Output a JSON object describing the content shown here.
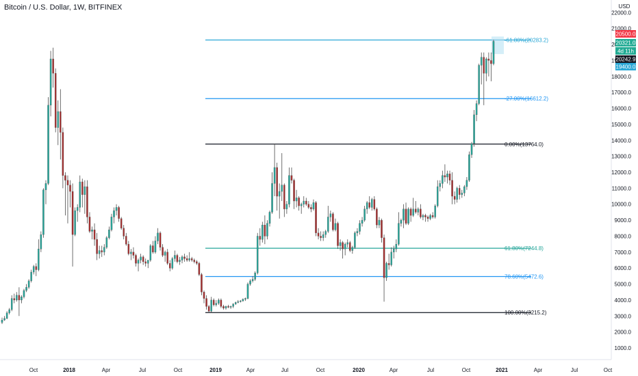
{
  "header": {
    "symbol_line": "Bitcoin / U.S. Dollar, 1W, BITFINEX"
  },
  "axis": {
    "currency_label": "USD",
    "price_ticks": [
      1000,
      2000,
      3000,
      4000,
      5000,
      6000,
      7000,
      8000,
      9000,
      10000,
      11000,
      12000,
      13000,
      14000,
      15000,
      16000,
      17000,
      18000,
      19000,
      20000,
      21000,
      22000
    ],
    "time_labels": [
      "Oct",
      "2018",
      "Apr",
      "Jul",
      "Oct",
      "2019",
      "Apr",
      "Jul",
      "Oct",
      "2020",
      "Apr",
      "Jul",
      "Oct",
      "2021",
      "Apr",
      "Jul",
      "Oct"
    ]
  },
  "price_badges": [
    {
      "text": "20500.0",
      "color": "#f23645"
    },
    {
      "text": "20321.0",
      "color": "#22ab94"
    },
    {
      "text": "4d 11h",
      "color": "#22ab94"
    },
    {
      "text": "20242.9",
      "color": "#131722"
    },
    {
      "text": "19400.0",
      "color": "#2aa7d6"
    }
  ],
  "chart_data": {
    "type": "candlestick",
    "title": "Bitcoin / U.S. Dollar, 1W, BITFINEX",
    "ylim": [
      0,
      22500
    ],
    "y_scale": "linear",
    "grid": false,
    "colors": {
      "up": "#26a69a",
      "down": "#a62f2f",
      "wick": "#4a4a4a"
    },
    "fib_levels": [
      {
        "label": "-61.80%(20283.2)",
        "value": 20283.2,
        "color": "#2aa7d6"
      },
      {
        "label": "-27.00%(16612.2)",
        "value": 16612.2,
        "color": "#2196f3"
      },
      {
        "label": "0.00%(13764.0)",
        "value": 13764.0,
        "color": "#131722"
      },
      {
        "label": "61.80%(7244.8)",
        "value": 7244.8,
        "color": "#26a69a"
      },
      {
        "label": "78.60%(5472.6)",
        "value": 5472.6,
        "color": "#2196f3"
      },
      {
        "label": "100.00%(3215.2)",
        "value": 3215.2,
        "color": "#131722"
      }
    ],
    "target_zone": {
      "low": 19400,
      "high": 20500,
      "color": "#b3e0f2"
    },
    "candles": [
      [
        2600,
        2900,
        2500,
        2750
      ],
      [
        2750,
        3000,
        2700,
        2850
      ],
      [
        2850,
        3300,
        2800,
        3200
      ],
      [
        3200,
        3500,
        3100,
        3400
      ],
      [
        3400,
        4300,
        3300,
        4100
      ],
      [
        4100,
        4400,
        3800,
        4000
      ],
      [
        4000,
        4500,
        3900,
        4300
      ],
      [
        4300,
        4800,
        3000,
        4000
      ],
      [
        4000,
        4300,
        3800,
        4200
      ],
      [
        4200,
        4700,
        4100,
        4600
      ],
      [
        4600,
        5000,
        4500,
        4800
      ],
      [
        4800,
        5300,
        4700,
        5200
      ],
      [
        5200,
        5900,
        5100,
        5750
      ],
      [
        5750,
        6200,
        5600,
        6100
      ],
      [
        6100,
        6300,
        5500,
        5900
      ],
      [
        5900,
        7800,
        5800,
        7200
      ],
      [
        7200,
        8300,
        7000,
        8100
      ],
      [
        8100,
        11000,
        7900,
        10900
      ],
      [
        10900,
        11500,
        10000,
        11300
      ],
      [
        11300,
        16700,
        11200,
        16200
      ],
      [
        16200,
        19600,
        15500,
        19100
      ],
      [
        19100,
        19800,
        17300,
        18200
      ],
      [
        18200,
        18500,
        14500,
        14800
      ],
      [
        14800,
        16500,
        13700,
        15800
      ],
      [
        15800,
        17200,
        12800,
        14500
      ],
      [
        14500,
        14800,
        11000,
        11800
      ],
      [
        11800,
        12000,
        9300,
        11500
      ],
      [
        11500,
        11800,
        8800,
        11200
      ],
      [
        11200,
        11500,
        9800,
        10800
      ],
      [
        10800,
        11300,
        6100,
        8100
      ],
      [
        8100,
        9800,
        8000,
        9600
      ],
      [
        9600,
        10000,
        8900,
        9800
      ],
      [
        9800,
        11800,
        9500,
        11400
      ],
      [
        11400,
        11600,
        9800,
        10600
      ],
      [
        10600,
        11500,
        9400,
        11100
      ],
      [
        11100,
        11500,
        8800,
        9200
      ],
      [
        9200,
        9500,
        8200,
        8300
      ],
      [
        8300,
        8600,
        7800,
        8400
      ],
      [
        8400,
        8800,
        7400,
        7800
      ],
      [
        7800,
        8200,
        6500,
        6900
      ],
      [
        6900,
        7400,
        6600,
        7100
      ],
      [
        7100,
        7400,
        6700,
        7000
      ],
      [
        7000,
        7500,
        6800,
        7300
      ],
      [
        7300,
        8000,
        7200,
        7900
      ],
      [
        7900,
        8600,
        7800,
        8400
      ],
      [
        8400,
        9400,
        8300,
        9200
      ],
      [
        9200,
        9800,
        8800,
        9600
      ],
      [
        9600,
        10000,
        9300,
        9800
      ],
      [
        9800,
        9900,
        8900,
        9100
      ],
      [
        9100,
        9200,
        8400,
        8500
      ],
      [
        8500,
        8700,
        7800,
        8000
      ],
      [
        8000,
        8200,
        7400,
        7500
      ],
      [
        7500,
        7700,
        6800,
        6900
      ],
      [
        6900,
        7200,
        6500,
        7000
      ],
      [
        7000,
        7300,
        6600,
        6800
      ],
      [
        6800,
        6900,
        6100,
        6300
      ],
      [
        6300,
        6600,
        5800,
        6500
      ],
      [
        6500,
        6900,
        6300,
        6700
      ],
      [
        6700,
        6800,
        6200,
        6400
      ],
      [
        6400,
        6600,
        6100,
        6300
      ],
      [
        6300,
        6500,
        6000,
        6500
      ],
      [
        6500,
        7500,
        6400,
        7400
      ],
      [
        7400,
        7700,
        6900,
        7000
      ],
      [
        7000,
        8000,
        6900,
        7700
      ],
      [
        7700,
        8500,
        7500,
        8200
      ],
      [
        8200,
        8300,
        7100,
        7300
      ],
      [
        7300,
        7500,
        6700,
        6800
      ],
      [
        6800,
        7100,
        6400,
        7000
      ],
      [
        7000,
        7200,
        6200,
        6300
      ],
      [
        6300,
        6500,
        5800,
        6000
      ],
      [
        6000,
        6700,
        5900,
        6600
      ],
      [
        6600,
        7100,
        6400,
        6800
      ],
      [
        6800,
        6900,
        6300,
        6400
      ],
      [
        6400,
        6700,
        6200,
        6500
      ],
      [
        6500,
        6800,
        6300,
        6700
      ],
      [
        6700,
        6900,
        6400,
        6600
      ],
      [
        6600,
        6800,
        6400,
        6500
      ],
      [
        6500,
        7000,
        6400,
        6600
      ],
      [
        6600,
        6700,
        6400,
        6500
      ],
      [
        6500,
        6600,
        6300,
        6400
      ],
      [
        6400,
        6500,
        6200,
        6300
      ],
      [
        6300,
        6400,
        5500,
        5600
      ],
      [
        5600,
        5700,
        4300,
        4500
      ],
      [
        4500,
        4600,
        3800,
        4100
      ],
      [
        4100,
        4300,
        3400,
        3600
      ],
      [
        3600,
        3700,
        3200,
        3300
      ],
      [
        3300,
        4200,
        3200,
        4000
      ],
      [
        4000,
        4100,
        3600,
        3700
      ],
      [
        3700,
        4000,
        3600,
        3800
      ],
      [
        3800,
        4100,
        3700,
        4000
      ],
      [
        4000,
        4100,
        3500,
        3600
      ],
      [
        3600,
        3700,
        3400,
        3500
      ],
      [
        3500,
        3650,
        3400,
        3600
      ],
      [
        3600,
        3700,
        3500,
        3550
      ],
      [
        3550,
        3650,
        3450,
        3600
      ],
      [
        3600,
        3800,
        3500,
        3750
      ],
      [
        3750,
        3900,
        3700,
        3850
      ],
      [
        3850,
        4000,
        3800,
        3900
      ],
      [
        3900,
        4000,
        3850,
        3950
      ],
      [
        3950,
        4100,
        3900,
        4050
      ],
      [
        4050,
        4150,
        3950,
        4100
      ],
      [
        4100,
        5100,
        4050,
        5000
      ],
      [
        5000,
        5300,
        4900,
        5200
      ],
      [
        5200,
        5500,
        5100,
        5300
      ],
      [
        5300,
        5800,
        5200,
        5700
      ],
      [
        5700,
        8200,
        5600,
        8000
      ],
      [
        8000,
        8500,
        7400,
        7800
      ],
      [
        7800,
        8900,
        7600,
        8700
      ],
      [
        8700,
        9300,
        7500,
        8000
      ],
      [
        8000,
        9000,
        7800,
        8800
      ],
      [
        8800,
        9600,
        8600,
        9500
      ],
      [
        9500,
        12000,
        9400,
        11300
      ],
      [
        11300,
        13800,
        10500,
        12300
      ],
      [
        12300,
        12600,
        9600,
        10500
      ],
      [
        10500,
        11300,
        9100,
        10800
      ],
      [
        10800,
        13200,
        10200,
        11200
      ],
      [
        11200,
        11300,
        9200,
        9700
      ],
      [
        9700,
        10200,
        9400,
        10000
      ],
      [
        10000,
        12300,
        9800,
        11800
      ],
      [
        11800,
        12300,
        11300,
        11500
      ],
      [
        11500,
        11600,
        9700,
        10200
      ],
      [
        10200,
        10900,
        9800,
        10400
      ],
      [
        10400,
        10500,
        9600,
        9900
      ],
      [
        9900,
        10100,
        9400,
        10000
      ],
      [
        10000,
        10500,
        9800,
        10200
      ],
      [
        10200,
        10400,
        9900,
        10000
      ],
      [
        10000,
        10200,
        9700,
        9800
      ],
      [
        9800,
        10000,
        9500,
        9700
      ],
      [
        9700,
        10300,
        9600,
        10100
      ],
      [
        10100,
        10200,
        8000,
        8200
      ],
      [
        8200,
        8500,
        7800,
        8000
      ],
      [
        8000,
        8300,
        7700,
        7900
      ],
      [
        7900,
        8300,
        7700,
        8100
      ],
      [
        8100,
        8400,
        7900,
        8300
      ],
      [
        8300,
        9900,
        8200,
        9200
      ],
      [
        9200,
        9600,
        8900,
        9400
      ],
      [
        9400,
        9500,
        8300,
        8400
      ],
      [
        8400,
        9100,
        8300,
        8800
      ],
      [
        8800,
        8900,
        7200,
        7400
      ],
      [
        7400,
        7800,
        7100,
        7600
      ],
      [
        7600,
        7700,
        6600,
        7200
      ],
      [
        7200,
        7600,
        6800,
        7500
      ],
      [
        7500,
        7800,
        7300,
        7600
      ],
      [
        7600,
        7700,
        7000,
        7100
      ],
      [
        7100,
        7400,
        6900,
        7300
      ],
      [
        7300,
        8300,
        7200,
        8200
      ],
      [
        8200,
        8500,
        8000,
        8300
      ],
      [
        8300,
        9000,
        8100,
        8800
      ],
      [
        8800,
        9200,
        8600,
        9000
      ],
      [
        9000,
        9900,
        8900,
        9700
      ],
      [
        9700,
        10200,
        9400,
        10100
      ],
      [
        10100,
        10500,
        9700,
        9800
      ],
      [
        9800,
        10400,
        9600,
        10300
      ],
      [
        10300,
        10500,
        9600,
        9700
      ],
      [
        9700,
        9800,
        8500,
        8700
      ],
      [
        8700,
        9200,
        8500,
        9000
      ],
      [
        9000,
        9100,
        7600,
        7900
      ],
      [
        7900,
        8100,
        3900,
        5400
      ],
      [
        5400,
        6400,
        5200,
        6300
      ],
      [
        6300,
        6900,
        5900,
        6200
      ],
      [
        6200,
        7300,
        6100,
        7000
      ],
      [
        7000,
        7400,
        6600,
        7200
      ],
      [
        7200,
        7800,
        7000,
        7500
      ],
      [
        7500,
        9500,
        7400,
        8800
      ],
      [
        8800,
        9100,
        8600,
        9000
      ],
      [
        9000,
        10000,
        8500,
        9700
      ],
      [
        9700,
        10100,
        8700,
        8800
      ],
      [
        8800,
        9800,
        8700,
        9700
      ],
      [
        9700,
        9800,
        8900,
        9300
      ],
      [
        9300,
        10400,
        9200,
        9700
      ],
      [
        9700,
        10200,
        9400,
        9500
      ],
      [
        9500,
        9800,
        9300,
        9700
      ],
      [
        9700,
        10000,
        9100,
        9200
      ],
      [
        9200,
        9400,
        9000,
        9300
      ],
      [
        9300,
        9400,
        8900,
        9200
      ],
      [
        9200,
        9300,
        8900,
        9100
      ],
      [
        9100,
        9400,
        9000,
        9300
      ],
      [
        9300,
        9500,
        9100,
        9200
      ],
      [
        9200,
        10000,
        9100,
        9900
      ],
      [
        9900,
        11500,
        9800,
        11100
      ],
      [
        11100,
        11500,
        10800,
        11300
      ],
      [
        11300,
        12100,
        11000,
        11800
      ],
      [
        11800,
        12500,
        11400,
        11700
      ],
      [
        11700,
        12100,
        11300,
        11900
      ],
      [
        11900,
        12100,
        11200,
        11500
      ],
      [
        11500,
        12000,
        10000,
        10500
      ],
      [
        10500,
        10800,
        10000,
        10300
      ],
      [
        10300,
        11100,
        10100,
        11000
      ],
      [
        11000,
        11200,
        10300,
        10600
      ],
      [
        10600,
        10900,
        10400,
        10700
      ],
      [
        10700,
        11200,
        10500,
        11100
      ],
      [
        11100,
        11700,
        10900,
        11500
      ],
      [
        11500,
        13300,
        11400,
        13100
      ],
      [
        13100,
        13900,
        12900,
        13800
      ],
      [
        13800,
        15900,
        13600,
        15600
      ],
      [
        15600,
        16500,
        15200,
        16300
      ],
      [
        16300,
        18800,
        16200,
        18700
      ],
      [
        18700,
        19500,
        17500,
        19200
      ],
      [
        19200,
        19500,
        16200,
        18200
      ],
      [
        18200,
        19200,
        17700,
        19100
      ],
      [
        19100,
        19500,
        18000,
        19000
      ],
      [
        19000,
        19500,
        17700,
        18800
      ],
      [
        18800,
        20300,
        18700,
        20200
      ]
    ]
  }
}
